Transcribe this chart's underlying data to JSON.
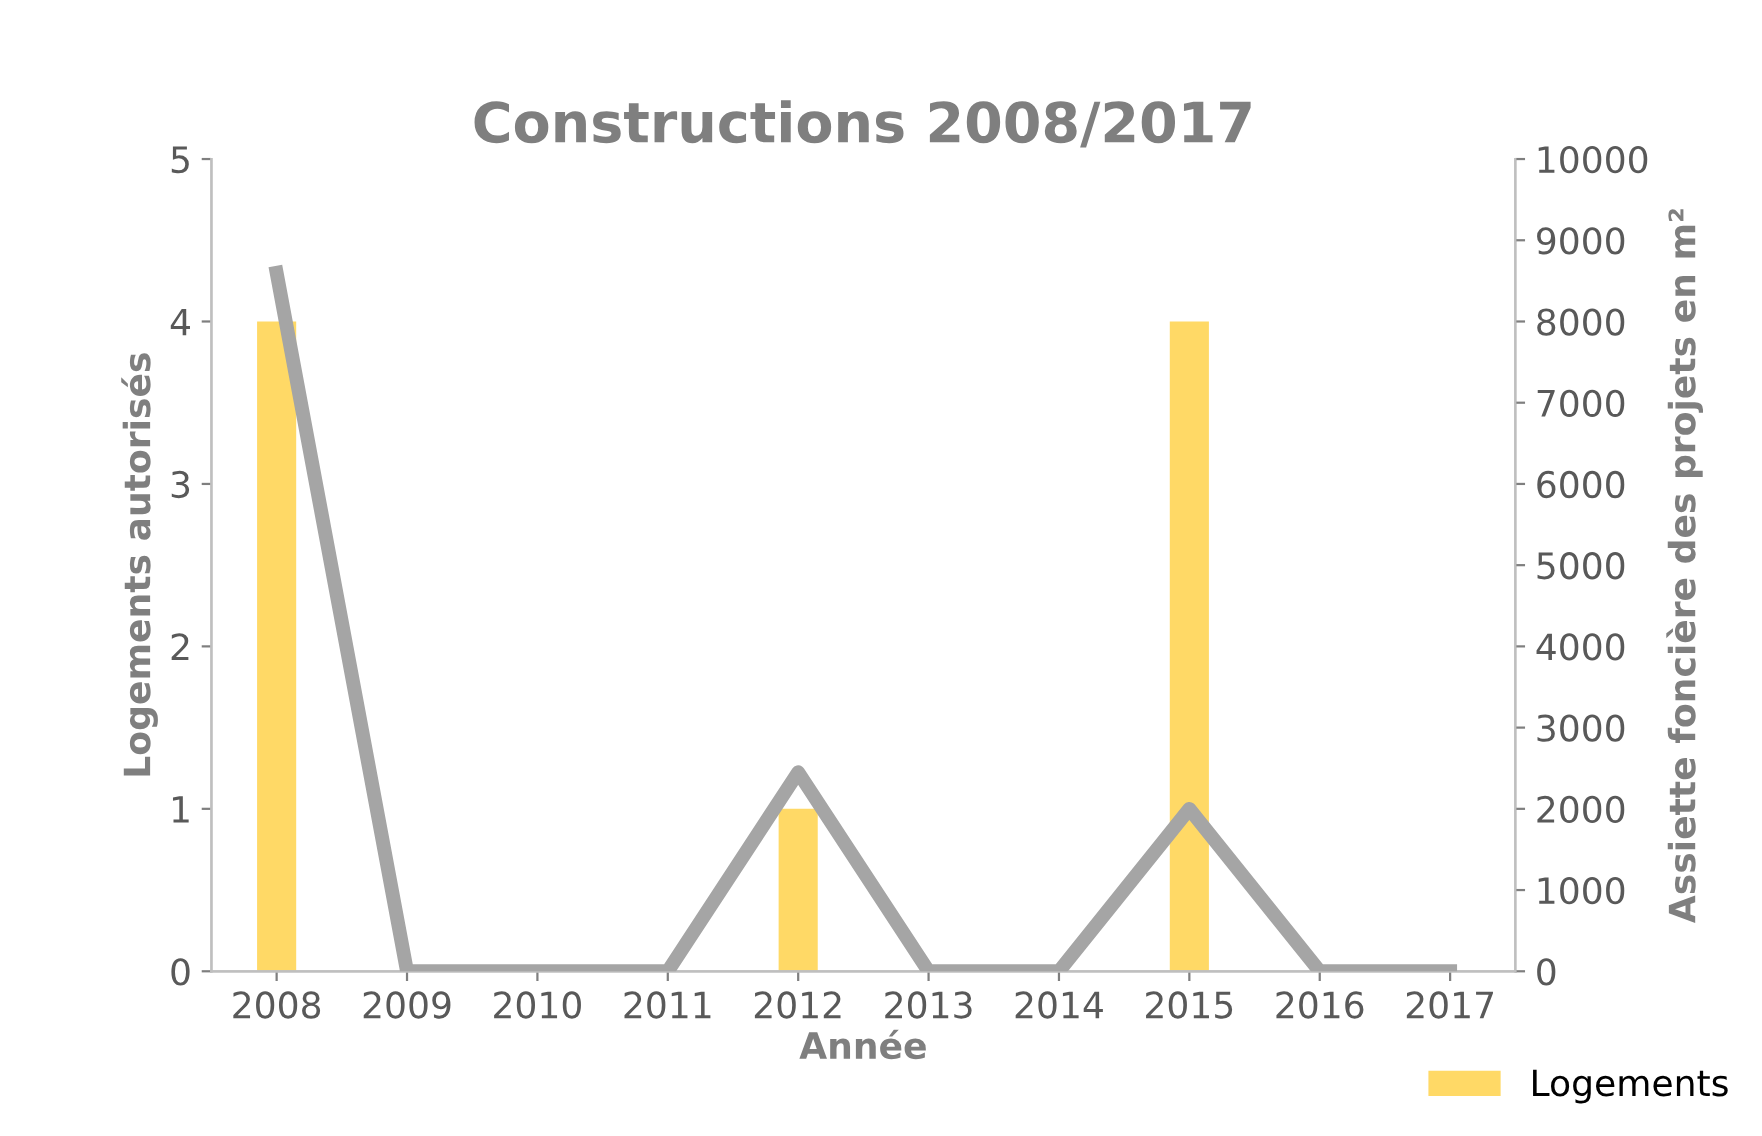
{
  "chart_data": {
    "type": "bar",
    "title": "Constructions 2008/2017",
    "xlabel": "Année",
    "ylabel": "Logements autorisés",
    "y2label": "Assiette foncière des projets en m²",
    "categories": [
      "2008",
      "2009",
      "2010",
      "2011",
      "2012",
      "2013",
      "2014",
      "2015",
      "2016",
      "2017"
    ],
    "series": [
      {
        "name": "Logements",
        "color": "#ffd966",
        "values": [
          4,
          0,
          0,
          0,
          1,
          0,
          0,
          4,
          0,
          0
        ]
      },
      {
        "type": "line",
        "axis": "y2",
        "color": "#a5a5a5",
        "values": [
          8600,
          0,
          0,
          0,
          2450,
          0,
          0,
          2000,
          0,
          0
        ]
      }
    ],
    "ylim": [
      0,
      5
    ],
    "yticks": [
      0,
      1,
      2,
      3,
      4,
      5
    ],
    "y2lim": [
      0,
      10000
    ],
    "y2ticks": [
      0,
      1000,
      2000,
      3000,
      4000,
      5000,
      6000,
      7000,
      8000,
      9000,
      10000
    ],
    "grid": false,
    "legend": "bottom right",
    "marker": "none"
  }
}
